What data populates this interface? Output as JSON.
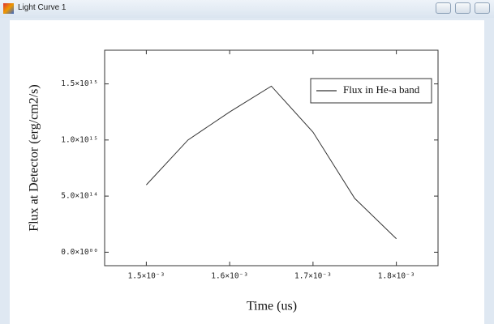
{
  "window": {
    "title": "Light Curve 1"
  },
  "chart_data": {
    "type": "line",
    "x_label": "Time (us)",
    "y_label": "Flux at Detector (erg/cm2/s)",
    "x": [
      0.0015,
      0.00155,
      0.0016,
      0.00165,
      0.0017,
      0.00175,
      0.0018
    ],
    "series": [
      {
        "name": "Flux in He-a band",
        "color": "#333333",
        "values": [
          600000000000000.0,
          1000000000000000.0,
          1250000000000000.0,
          1480000000000000.0,
          1070000000000000.0,
          480000000000000.0,
          120000000000000.0
        ]
      }
    ],
    "xlim": [
      0.00145,
      0.00185
    ],
    "ylim": [
      -120000000000000.0,
      1800000000000000.0
    ],
    "xticks": [
      {
        "value": 0.0015,
        "label": "1.5×10⁻³"
      },
      {
        "value": 0.0016,
        "label": "1.6×10⁻³"
      },
      {
        "value": 0.0017,
        "label": "1.7×10⁻³"
      },
      {
        "value": 0.0018,
        "label": "1.8×10⁻³"
      }
    ],
    "yticks": [
      {
        "value": 0,
        "label": "0.0×10⁰⁰"
      },
      {
        "value": 500000000000000.0,
        "label": "5.0×10¹⁴"
      },
      {
        "value": 1000000000000000.0,
        "label": "1.0×10¹⁵"
      },
      {
        "value": 1500000000000000.0,
        "label": "1.5×10¹⁵"
      }
    ],
    "legend": "upper right",
    "grid": false
  }
}
